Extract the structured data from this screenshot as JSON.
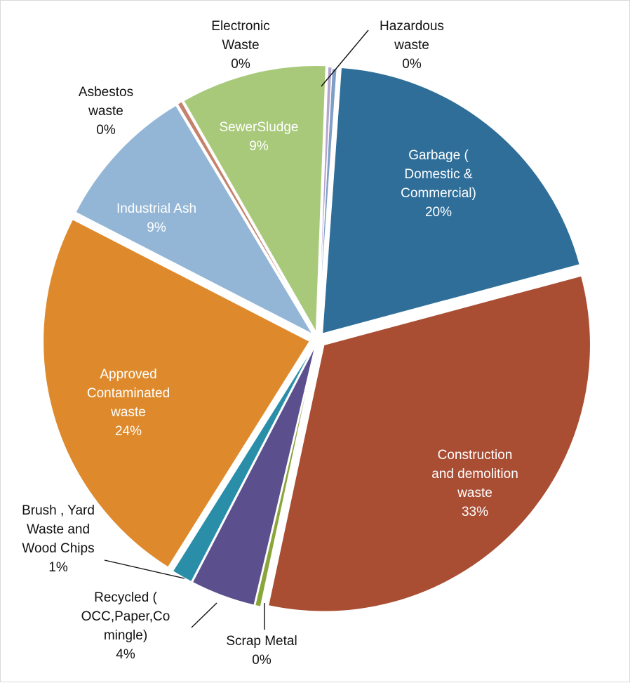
{
  "chart_data": {
    "type": "pie",
    "title": "",
    "slices": [
      {
        "name": "Hazardous waste",
        "label_lines": [
          "Hazardous",
          "waste",
          "0%"
        ],
        "value": 0.3,
        "color": "#7f9fc6"
      },
      {
        "name": "Garbage ( Domestic & Commercial)",
        "label_lines": [
          "Garbage (",
          "Domestic &",
          "Commercial)",
          "20%"
        ],
        "value": 20,
        "color": "#2e6e99"
      },
      {
        "name": "Construction and demolition waste",
        "label_lines": [
          "Construction",
          "and demolition",
          "waste",
          "33%"
        ],
        "value": 33,
        "color": "#a94d33"
      },
      {
        "name": "Scrap Metal",
        "label_lines": [
          "Scrap Metal",
          "0%"
        ],
        "value": 0.35,
        "color": "#8aa53a"
      },
      {
        "name": "Recycled ( OCC,Paper,Co mingle)",
        "label_lines": [
          "Recycled (",
          "OCC,Paper,Co",
          "mingle)",
          "4%"
        ],
        "value": 4,
        "color": "#5b4f8d"
      },
      {
        "name": "Brush , Yard Waste and Wood Chips",
        "label_lines": [
          "Brush , Yard",
          "Waste and",
          "Wood Chips",
          "1%"
        ],
        "value": 1.3,
        "color": "#2a8ea8"
      },
      {
        "name": "Approved Contaminated waste",
        "label_lines": [
          "Approved",
          "Contaminated",
          "waste",
          "24%"
        ],
        "value": 24,
        "color": "#de8a2c"
      },
      {
        "name": "Industrial Ash",
        "label_lines": [
          "Industrial Ash",
          "9%"
        ],
        "value": 9,
        "color": "#93b6d6"
      },
      {
        "name": "Asbestos waste",
        "label_lines": [
          "Asbestos",
          "waste",
          "0%"
        ],
        "value": 0.3,
        "color": "#c4826c"
      },
      {
        "name": "SewerSludge",
        "label_lines": [
          "SewerSludge",
          "9%"
        ],
        "value": 9,
        "color": "#a9c97a"
      },
      {
        "name": "Electronic Waste",
        "label_lines": [
          "Electronic",
          "Waste",
          "0%"
        ],
        "value": 0.25,
        "color": "#b3a6cc"
      }
    ]
  }
}
